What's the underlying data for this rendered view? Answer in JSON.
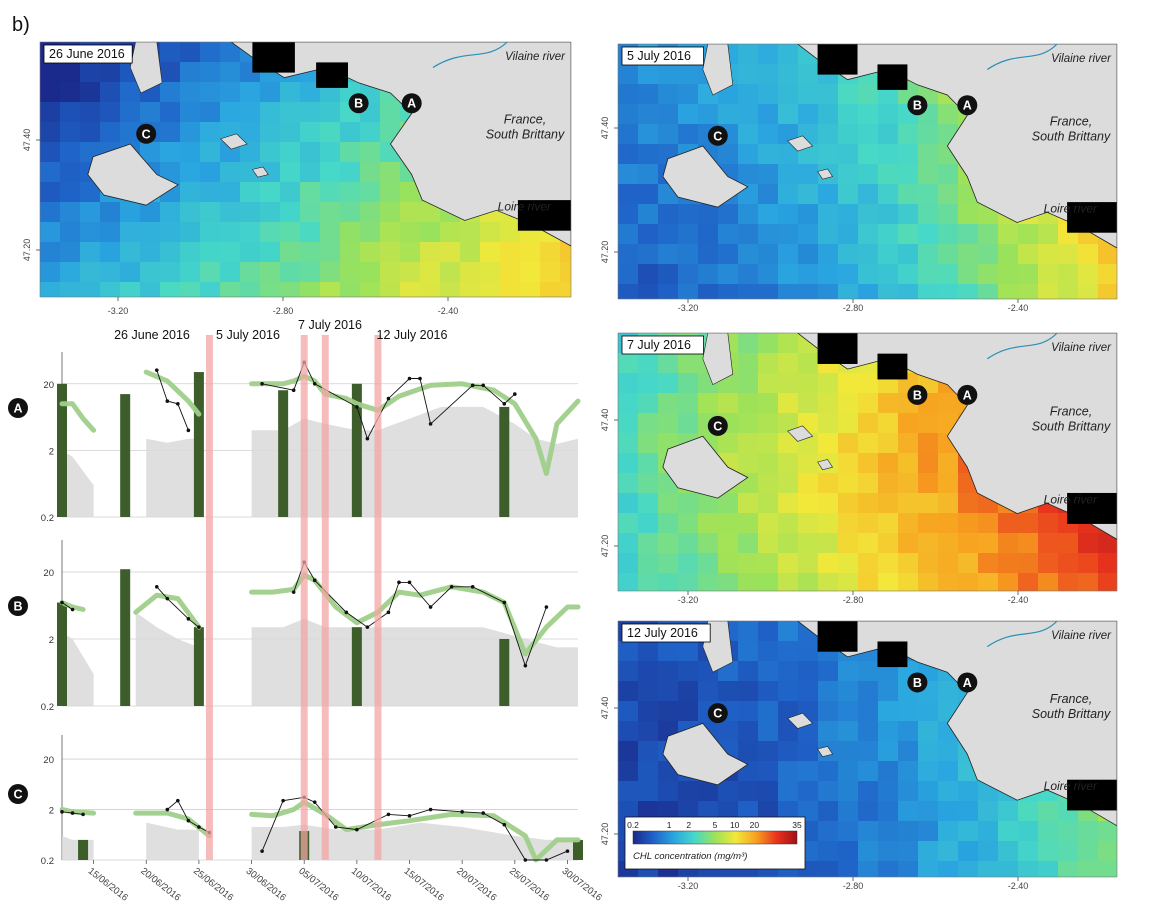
{
  "panel_label": "b)",
  "maps": [
    {
      "date": "5 July 2016",
      "theme": "mid"
    },
    {
      "date": "7 July 2016",
      "theme": "high"
    },
    {
      "date": "12 July 2016",
      "theme": "low"
    },
    {
      "date": "26 June 2016",
      "theme": "early"
    }
  ],
  "map_labels": {
    "vilaine": "Vilaine river",
    "france_line1": "France,",
    "france_line2": "South Brittany",
    "loire": "Loire river",
    "x_ticks": [
      "-3.20",
      "-2.80",
      "-2.40"
    ],
    "y_ticks": [
      "47.40",
      "47.20"
    ],
    "stations": [
      "A",
      "B",
      "C"
    ]
  },
  "colorbar": {
    "ticks": [
      "0.2",
      "1",
      "2",
      "5",
      "10",
      "20",
      "35"
    ],
    "title": "CHL concentration (mg/m³)",
    "colors": [
      "#1a2a8c",
      "#1f62c8",
      "#2aa6e0",
      "#46d8c8",
      "#9be25a",
      "#f2e83a",
      "#f7a11f",
      "#e8331d",
      "#a3101a"
    ]
  },
  "event_labels": [
    "26 June 2016",
    "5 July 2016",
    "7 July 2016",
    "12 July 2016"
  ],
  "chart_data": {
    "type": "line",
    "x_tick_labels": [
      "15/06/2016",
      "20/06/2016",
      "25/06/2016",
      "30/06/2016",
      "05/07/2016",
      "10/07/2016",
      "15/07/2016",
      "20/07/2016",
      "25/07/2016",
      "30/07/2016"
    ],
    "x_range": [
      "2016-06-12",
      "2016-07-31"
    ],
    "y_scale": "log",
    "y_ticks": [
      "20",
      "2",
      "0.2"
    ],
    "event_dates": [
      "2016-06-26",
      "2016-07-05",
      "2016-07-07",
      "2016-07-12"
    ],
    "colors": {
      "obs": "#111111",
      "smooth": "#9fcf8a",
      "bars": "#3d5e2b",
      "envelope": "#d9d9d9",
      "event": "#f2a6a4"
    },
    "panels": [
      {
        "label": "A",
        "bars": [
          {
            "x": "2016-06-12",
            "v": 20
          },
          {
            "x": "2016-06-18",
            "v": 14
          },
          {
            "x": "2016-06-25",
            "v": 30
          },
          {
            "x": "2016-07-03",
            "v": 16
          },
          {
            "x": "2016-07-10",
            "v": 20
          },
          {
            "x": "2016-07-24",
            "v": 9
          }
        ],
        "smooth": [
          [
            [
              "2016-06-12",
              10
            ],
            [
              "2016-06-13",
              10
            ],
            [
              "2016-06-14",
              6
            ],
            [
              "2016-06-15",
              4
            ]
          ],
          [
            [
              "2016-06-20",
              30
            ],
            [
              "2016-06-22",
              22
            ],
            [
              "2016-06-24",
              11
            ],
            [
              "2016-06-25",
              7
            ]
          ],
          [
            [
              "2016-06-30",
              20
            ],
            [
              "2016-07-02",
              20
            ],
            [
              "2016-07-03",
              20
            ],
            [
              "2016-07-04",
              22
            ],
            [
              "2016-07-05",
              26
            ],
            [
              "2016-07-06",
              22
            ],
            [
              "2016-07-07",
              14
            ],
            [
              "2016-07-09",
              12
            ],
            [
              "2016-07-10",
              10
            ],
            [
              "2016-07-12",
              8
            ],
            [
              "2016-07-14",
              13
            ],
            [
              "2016-07-17",
              19
            ],
            [
              "2016-07-20",
              20
            ],
            [
              "2016-07-23",
              16
            ],
            [
              "2016-07-25",
              10
            ],
            [
              "2016-07-27",
              3
            ],
            [
              "2016-07-28",
              0.9
            ],
            [
              "2016-07-29",
              5
            ],
            [
              "2016-07-31",
              11
            ]
          ]
        ],
        "obs": [
          [
            [
              "2016-06-21",
              32
            ],
            [
              "2016-06-22",
              11
            ],
            [
              "2016-06-23",
              10
            ],
            [
              "2016-06-24",
              4
            ]
          ],
          [
            [
              "2016-07-01",
              20
            ],
            [
              "2016-07-04",
              16
            ],
            [
              "2016-07-05",
              42
            ],
            [
              "2016-07-06",
              20
            ],
            [
              "2016-07-10",
              9
            ],
            [
              "2016-07-11",
              3
            ],
            [
              "2016-07-13",
              12
            ],
            [
              "2016-07-15",
              24
            ],
            [
              "2016-07-16",
              24
            ],
            [
              "2016-07-17",
              5
            ],
            [
              "2016-07-21",
              19
            ],
            [
              "2016-07-22",
              19
            ],
            [
              "2016-07-24",
              10
            ],
            [
              "2016-07-25",
              14
            ]
          ]
        ],
        "envelope": [
          [
            [
              "2016-06-12",
              2
            ],
            [
              "2016-06-13",
              1.6
            ],
            [
              "2016-06-15",
              0.6
            ]
          ],
          [
            [
              "2016-06-20",
              3
            ],
            [
              "2016-06-22",
              2.6
            ],
            [
              "2016-06-24",
              3
            ],
            [
              "2016-06-25",
              3
            ]
          ],
          [
            [
              "2016-06-30",
              4
            ],
            [
              "2016-07-03",
              4
            ],
            [
              "2016-07-05",
              6
            ],
            [
              "2016-07-07",
              5
            ],
            [
              "2016-07-10",
              4
            ],
            [
              "2016-07-12",
              4
            ],
            [
              "2016-07-15",
              6
            ],
            [
              "2016-07-18",
              9
            ],
            [
              "2016-07-22",
              9
            ],
            [
              "2016-07-25",
              5
            ],
            [
              "2016-07-27",
              3
            ],
            [
              "2016-07-29",
              2.5
            ],
            [
              "2016-07-31",
              3
            ]
          ]
        ]
      },
      {
        "label": "B",
        "bars": [
          {
            "x": "2016-06-12",
            "v": 7
          },
          {
            "x": "2016-06-18",
            "v": 22
          },
          {
            "x": "2016-06-25",
            "v": 3
          },
          {
            "x": "2016-07-10",
            "v": 3
          },
          {
            "x": "2016-07-24",
            "v": 2
          }
        ],
        "smooth": [
          [
            [
              "2016-06-12",
              7
            ],
            [
              "2016-06-13",
              6
            ],
            [
              "2016-06-14",
              5.5
            ]
          ],
          [
            [
              "2016-06-19",
              5
            ],
            [
              "2016-06-21",
              9
            ],
            [
              "2016-06-23",
              8
            ],
            [
              "2016-06-25",
              3
            ]
          ],
          [
            [
              "2016-06-30",
              10
            ],
            [
              "2016-07-02",
              10
            ],
            [
              "2016-07-04",
              11
            ],
            [
              "2016-07-05",
              18
            ],
            [
              "2016-07-06",
              15
            ],
            [
              "2016-07-08",
              6
            ],
            [
              "2016-07-10",
              3.5
            ],
            [
              "2016-07-12",
              5
            ],
            [
              "2016-07-14",
              10
            ],
            [
              "2016-07-16",
              9
            ],
            [
              "2016-07-19",
              12
            ],
            [
              "2016-07-22",
              10
            ],
            [
              "2016-07-24",
              7
            ],
            [
              "2016-07-26",
              1.2
            ],
            [
              "2016-07-28",
              3
            ],
            [
              "2016-07-30",
              6
            ],
            [
              "2016-07-31",
              6
            ]
          ]
        ],
        "obs": [
          [
            [
              "2016-06-12",
              7
            ],
            [
              "2016-06-13",
              5.5
            ]
          ],
          [
            [
              "2016-06-21",
              12
            ],
            [
              "2016-06-22",
              8
            ],
            [
              "2016-06-24",
              4
            ],
            [
              "2016-06-25",
              3
            ]
          ],
          [
            [
              "2016-07-04",
              10
            ],
            [
              "2016-07-05",
              28
            ],
            [
              "2016-07-06",
              15
            ],
            [
              "2016-07-09",
              5
            ],
            [
              "2016-07-11",
              3
            ],
            [
              "2016-07-13",
              5
            ],
            [
              "2016-07-14",
              14
            ],
            [
              "2016-07-15",
              14
            ],
            [
              "2016-07-17",
              6
            ],
            [
              "2016-07-19",
              12
            ],
            [
              "2016-07-21",
              12
            ],
            [
              "2016-07-24",
              7
            ],
            [
              "2016-07-26",
              0.8
            ],
            [
              "2016-07-28",
              6
            ]
          ]
        ],
        "envelope": [
          [
            [
              "2016-06-12",
              2.5
            ],
            [
              "2016-06-13",
              2
            ],
            [
              "2016-06-15",
              0.6
            ]
          ],
          [
            [
              "2016-06-19",
              5
            ],
            [
              "2016-06-21",
              3
            ],
            [
              "2016-06-23",
              2
            ],
            [
              "2016-06-25",
              1.5
            ]
          ],
          [
            [
              "2016-06-30",
              3
            ],
            [
              "2016-07-03",
              3
            ],
            [
              "2016-07-05",
              4
            ],
            [
              "2016-07-07",
              3
            ],
            [
              "2016-07-10",
              3
            ],
            [
              "2016-07-13",
              3
            ],
            [
              "2016-07-17",
              3
            ],
            [
              "2016-07-22",
              3
            ],
            [
              "2016-07-26",
              2
            ],
            [
              "2016-07-29",
              1.5
            ],
            [
              "2016-07-31",
              1.5
            ]
          ]
        ]
      },
      {
        "label": "C",
        "bars": [
          {
            "x": "2016-06-14",
            "v": 0.5
          },
          {
            "x": "2016-07-05",
            "v": 0.75
          },
          {
            "x": "2016-07-31",
            "v": 0.5
          }
        ],
        "smooth": [
          [
            [
              "2016-06-12",
              2
            ],
            [
              "2016-06-13",
              1.8
            ],
            [
              "2016-06-15",
              1.7
            ]
          ],
          [
            [
              "2016-06-19",
              1.7
            ],
            [
              "2016-06-22",
              1.7
            ],
            [
              "2016-06-24",
              1.3
            ],
            [
              "2016-06-26",
              0.6
            ]
          ],
          [
            [
              "2016-06-30",
              1.6
            ],
            [
              "2016-07-02",
              1.5
            ],
            [
              "2016-07-04",
              2
            ],
            [
              "2016-07-05",
              2.8
            ],
            [
              "2016-07-07",
              1.6
            ],
            [
              "2016-07-09",
              0.8
            ],
            [
              "2016-07-12",
              1
            ],
            [
              "2016-07-15",
              1.2
            ],
            [
              "2016-07-19",
              1.6
            ],
            [
              "2016-07-23",
              1.5
            ],
            [
              "2016-07-26",
              0.6
            ],
            [
              "2016-07-27",
              0.2
            ],
            [
              "2016-07-29",
              0.5
            ],
            [
              "2016-07-31",
              0.5
            ]
          ]
        ],
        "obs": [
          [
            [
              "2016-06-12",
              1.8
            ],
            [
              "2016-06-13",
              1.7
            ],
            [
              "2016-06-14",
              1.6
            ]
          ],
          [
            [
              "2016-06-22",
              2
            ],
            [
              "2016-06-23",
              3
            ],
            [
              "2016-06-24",
              1.2
            ],
            [
              "2016-06-25",
              0.9
            ],
            [
              "2016-06-26",
              0.7
            ]
          ],
          [
            [
              "2016-07-01",
              0.3
            ],
            [
              "2016-07-03",
              3
            ],
            [
              "2016-07-05",
              3.5
            ],
            [
              "2016-07-06",
              2.8
            ],
            [
              "2016-07-08",
              0.9
            ],
            [
              "2016-07-10",
              0.8
            ],
            [
              "2016-07-13",
              1.6
            ],
            [
              "2016-07-15",
              1.5
            ],
            [
              "2016-07-17",
              2
            ],
            [
              "2016-07-20",
              1.8
            ],
            [
              "2016-07-22",
              1.7
            ],
            [
              "2016-07-24",
              1
            ],
            [
              "2016-07-26",
              0.2
            ],
            [
              "2016-07-28",
              0.2
            ],
            [
              "2016-07-30",
              0.3
            ]
          ]
        ],
        "envelope": [
          [
            [
              "2016-06-12",
              0.6
            ],
            [
              "2016-06-13",
              0.5
            ],
            [
              "2016-06-15",
              0.5
            ]
          ],
          [
            [
              "2016-06-20",
              1.1
            ],
            [
              "2016-06-23",
              0.8
            ],
            [
              "2016-06-25",
              0.8
            ]
          ],
          [
            [
              "2016-06-30",
              0.9
            ],
            [
              "2016-07-03",
              0.9
            ],
            [
              "2016-07-05",
              1
            ],
            [
              "2016-07-08",
              0.8
            ],
            [
              "2016-07-12",
              0.8
            ],
            [
              "2016-07-16",
              1.1
            ],
            [
              "2016-07-20",
              0.9
            ],
            [
              "2016-07-25",
              0.6
            ],
            [
              "2016-07-28",
              0.5
            ],
            [
              "2016-07-31",
              0.5
            ]
          ]
        ]
      }
    ]
  }
}
